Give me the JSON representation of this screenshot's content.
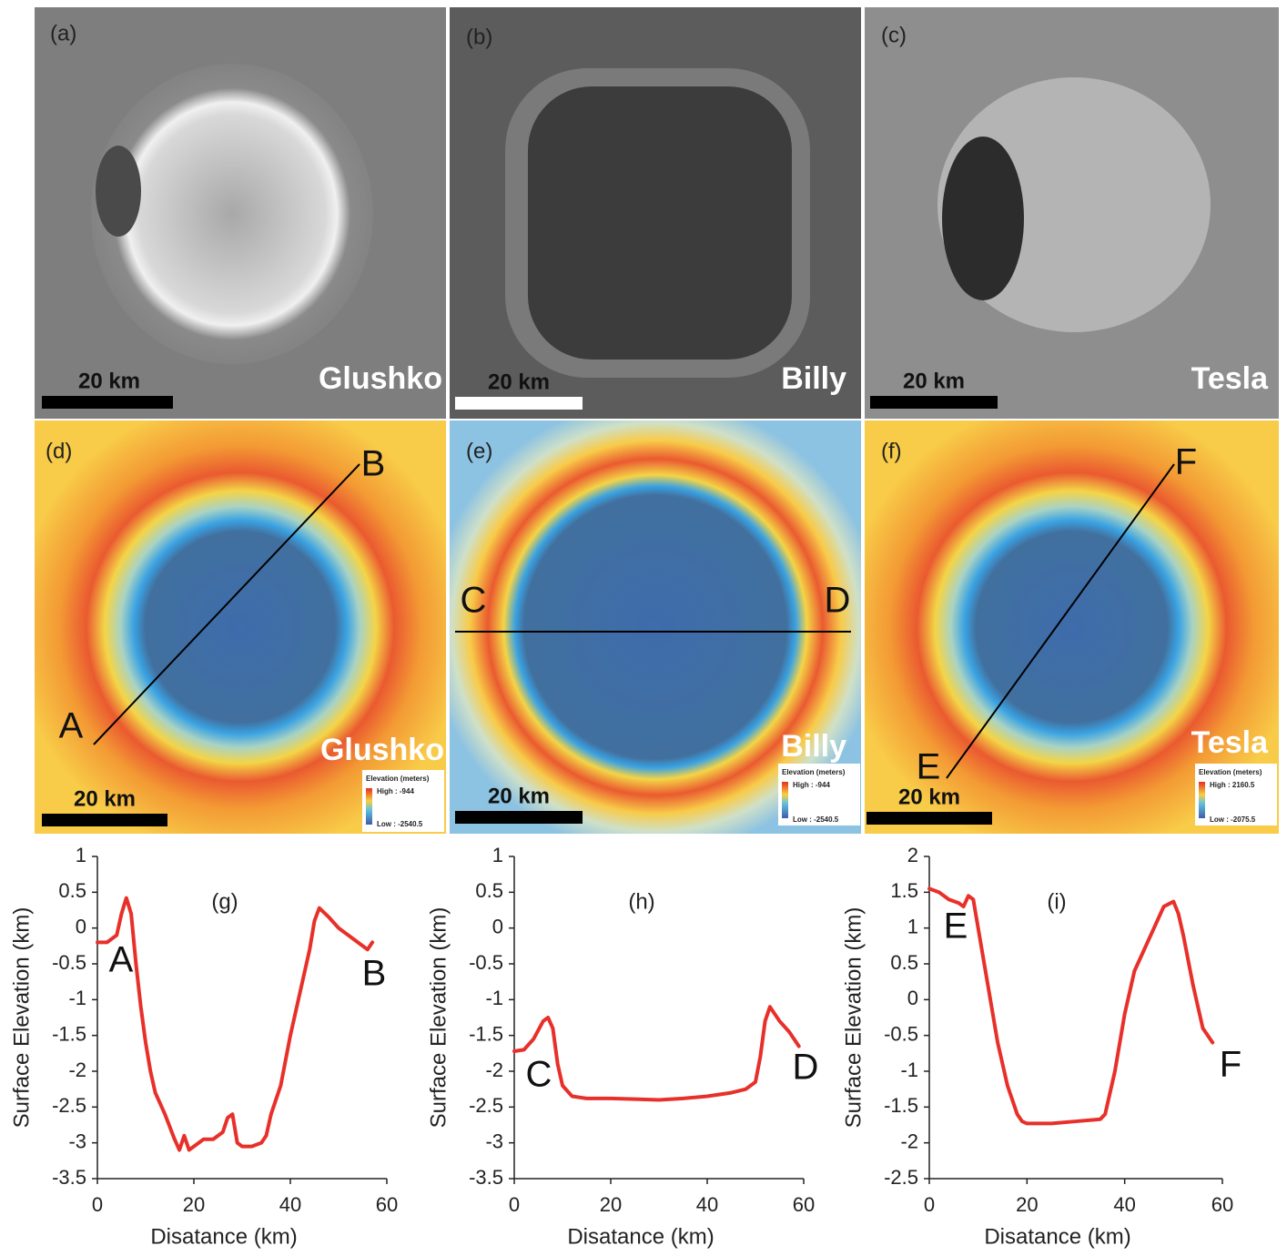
{
  "image_panels": [
    {
      "label": "(a)",
      "name": "Glushko",
      "scale": "20 km"
    },
    {
      "label": "(b)",
      "name": "Billy",
      "scale": "20 km"
    },
    {
      "label": "(c)",
      "name": "Tesla",
      "scale": "20 km"
    },
    {
      "label": "(d)",
      "name": "Glushko",
      "scale": "20 km",
      "start": "A",
      "end": "B",
      "legend_title": "Elevation (meters)",
      "legend_high": "High : -944",
      "legend_low": "Low : -2540.5"
    },
    {
      "label": "(e)",
      "name": "Billy",
      "scale": "20 km",
      "start": "C",
      "end": "D",
      "legend_title": "Elevation (meters)",
      "legend_high": "High : -944",
      "legend_low": "Low : -2540.5"
    },
    {
      "label": "(f)",
      "name": "Tesla",
      "scale": "20 km",
      "start": "E",
      "end": "F",
      "legend_title": "Elevation (meters)",
      "legend_high": "High : 2160.5",
      "legend_low": "Low : -2075.5"
    }
  ],
  "chart_data": [
    {
      "type": "line",
      "title": "(g)",
      "x_label": "Disatance (km)",
      "y_label": "Surface Elevation (km)",
      "xlim": [
        0,
        60
      ],
      "xticks": [
        0,
        20,
        40,
        60
      ],
      "ylim": [
        -3.5,
        1
      ],
      "yticks": [
        -3.5,
        -3,
        -2.5,
        -2,
        -1.5,
        -1,
        -0.5,
        0,
        0.5,
        1
      ],
      "annotations": [
        "A",
        "B"
      ],
      "series": [
        {
          "color": "#e8302a",
          "x": [
            0,
            2,
            4,
            5,
            6,
            7,
            8,
            9,
            10,
            11,
            12,
            14,
            16,
            17,
            18,
            19,
            20,
            22,
            24,
            26,
            27,
            28,
            29,
            30,
            32,
            34,
            35,
            36,
            38,
            40,
            42,
            44,
            45,
            46,
            48,
            50,
            52,
            54,
            56,
            57
          ],
          "values": [
            -0.2,
            -0.2,
            -0.1,
            0.2,
            0.42,
            0.2,
            -0.5,
            -1.1,
            -1.6,
            -2.0,
            -2.3,
            -2.6,
            -2.95,
            -3.1,
            -2.9,
            -3.1,
            -3.05,
            -2.95,
            -2.95,
            -2.85,
            -2.65,
            -2.6,
            -3.0,
            -3.05,
            -3.05,
            -3.0,
            -2.9,
            -2.6,
            -2.2,
            -1.5,
            -0.9,
            -0.3,
            0.1,
            0.28,
            0.15,
            0.0,
            -0.1,
            -0.2,
            -0.3,
            -0.2
          ]
        }
      ]
    },
    {
      "type": "line",
      "title": "(h)",
      "x_label": "Disatance (km)",
      "y_label": "Surface Elevation (km)",
      "xlim": [
        0,
        60
      ],
      "xticks": [
        0,
        20,
        40,
        60
      ],
      "ylim": [
        -3.5,
        1
      ],
      "yticks": [
        -3.5,
        -3,
        -2.5,
        -2,
        -1.5,
        -1,
        -0.5,
        0,
        0.5,
        1
      ],
      "annotations": [
        "C",
        "D"
      ],
      "series": [
        {
          "color": "#e8302a",
          "x": [
            0,
            2,
            4,
            6,
            7,
            8,
            9,
            10,
            12,
            15,
            20,
            25,
            30,
            35,
            40,
            45,
            48,
            50,
            51,
            52,
            53,
            55,
            57,
            59
          ],
          "values": [
            -1.72,
            -1.7,
            -1.55,
            -1.3,
            -1.25,
            -1.4,
            -1.9,
            -2.2,
            -2.35,
            -2.38,
            -2.38,
            -2.39,
            -2.4,
            -2.38,
            -2.35,
            -2.3,
            -2.25,
            -2.15,
            -1.8,
            -1.3,
            -1.1,
            -1.3,
            -1.45,
            -1.65
          ]
        }
      ]
    },
    {
      "type": "line",
      "title": "(i)",
      "x_label": "Disatance (km)",
      "y_label": "Surface Elevation (km)",
      "xlim": [
        0,
        60
      ],
      "xticks": [
        0,
        20,
        40,
        60
      ],
      "ylim": [
        -2.5,
        2
      ],
      "yticks": [
        -2.5,
        -2,
        -1.5,
        -1,
        -0.5,
        0,
        0.5,
        1,
        1.5,
        2
      ],
      "annotations": [
        "E",
        "F"
      ],
      "series": [
        {
          "color": "#e8302a",
          "x": [
            0,
            2,
            4,
            6,
            7,
            8,
            9,
            10,
            12,
            14,
            16,
            18,
            19,
            20,
            25,
            30,
            35,
            36,
            38,
            40,
            42,
            44,
            46,
            48,
            50,
            51,
            52,
            54,
            56,
            58
          ],
          "values": [
            1.55,
            1.5,
            1.4,
            1.35,
            1.3,
            1.45,
            1.4,
            1.0,
            0.2,
            -0.6,
            -1.2,
            -1.6,
            -1.7,
            -1.73,
            -1.73,
            -1.7,
            -1.67,
            -1.6,
            -1.0,
            -0.2,
            0.4,
            0.7,
            1.0,
            1.3,
            1.37,
            1.2,
            0.9,
            0.2,
            -0.4,
            -0.6
          ]
        }
      ]
    }
  ]
}
